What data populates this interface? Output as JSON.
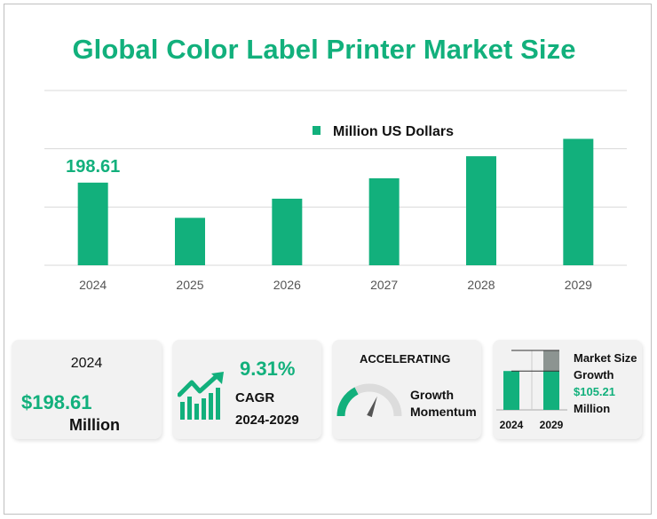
{
  "title": "Global Color Label Printer Market Size",
  "colors": {
    "accent": "#12b07c",
    "grid": "#d9d9d9",
    "gray_bar": "#8c9491",
    "card_bg": "#f2f2f2"
  },
  "chart_data": {
    "type": "bar",
    "categories": [
      "2024",
      "2025",
      "2026",
      "2027",
      "2028",
      "2029"
    ],
    "series": [
      {
        "name": "Million US Dollars",
        "values": [
          198.61,
          114.0,
          160.0,
          209.0,
          262.0,
          303.82
        ]
      }
    ],
    "data_labels": [
      {
        "category": "2024",
        "text": "198.61"
      }
    ],
    "ylim": [
      0,
      420
    ],
    "grid": true,
    "legend_position": "top-right",
    "xlabel": "",
    "ylabel": ""
  },
  "cards": {
    "year_value": {
      "year": "2024",
      "value": "$198.61",
      "unit": "Million"
    },
    "cagr": {
      "rate": "9.31%",
      "label": "CAGR",
      "period": "2024-2029",
      "icon": "rising-chart-icon"
    },
    "momentum": {
      "status": "ACCELERATING",
      "label_line1": "Growth",
      "label_line2": "Momentum",
      "icon": "gauge-icon",
      "level": 0.35
    },
    "growth": {
      "title_line1": "Market Size",
      "title_line2": "Growth",
      "value": "$105.21",
      "unit": "Million",
      "mini_chart": {
        "categories": [
          "2024",
          "2029"
        ],
        "base": 198.61,
        "total": 303.82
      }
    }
  }
}
